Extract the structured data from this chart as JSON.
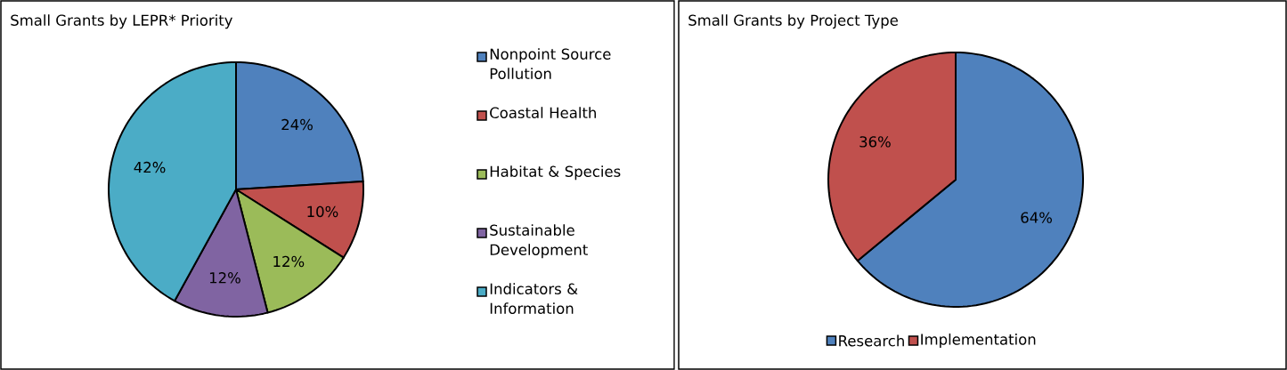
{
  "chart_data": [
    {
      "type": "pie",
      "title": "Small Grants by LEPR* Priority",
      "categories": [
        "Nonpoint Source Pollution",
        "Coastal Health",
        "Habitat & Species",
        "Sustainable Development",
        "Indicators & Information"
      ],
      "values": [
        24,
        10,
        12,
        12,
        42
      ],
      "colors": [
        "#4f81bd",
        "#c0504d",
        "#9bbb59",
        "#8064a2",
        "#4bacc6"
      ],
      "value_labels": [
        "24%",
        "10%",
        "12%",
        "12%",
        "42%"
      ],
      "legend": "right"
    },
    {
      "type": "pie",
      "title": "Small Grants by Project Type",
      "categories": [
        "Research",
        "Implementation"
      ],
      "values": [
        64,
        36
      ],
      "colors": [
        "#4f81bd",
        "#c0504d"
      ],
      "value_labels": [
        "64%",
        "36%"
      ],
      "legend": "bottom"
    }
  ]
}
